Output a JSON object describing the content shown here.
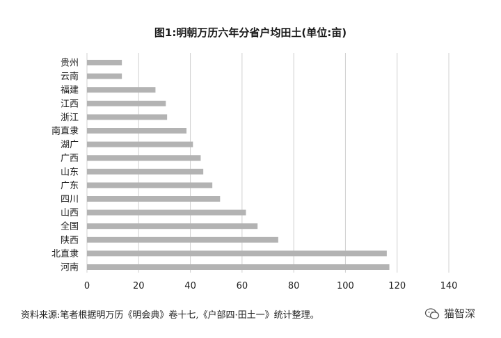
{
  "chart_data": {
    "type": "bar",
    "orientation": "horizontal",
    "title": "图1:明朝万历六年分省户均田土(单位:亩)",
    "categories": [
      "贵州",
      "云南",
      "福建",
      "江西",
      "浙江",
      "南直隶",
      "湖广",
      "广西",
      "山东",
      "广东",
      "四川",
      "山西",
      "全国",
      "陕西",
      "北直隶",
      "河南"
    ],
    "values": [
      13.5,
      13.5,
      26.5,
      30.5,
      31,
      38.5,
      41,
      44,
      45,
      48.5,
      51.5,
      61.5,
      66,
      74,
      116,
      117
    ],
    "xlim": [
      0,
      140
    ],
    "xticks": [
      0,
      20,
      40,
      60,
      80,
      100,
      120,
      140
    ],
    "grid": true,
    "colors": {
      "bar": "#b3b3b3",
      "grid": "#d0d0d0"
    }
  },
  "source_note": "资料来源:笔者根据明万历《明会典》卷十七,《户部四·田土一》统计整理。",
  "watermark": {
    "text": "猫智深",
    "icon": "wechat-icon"
  }
}
